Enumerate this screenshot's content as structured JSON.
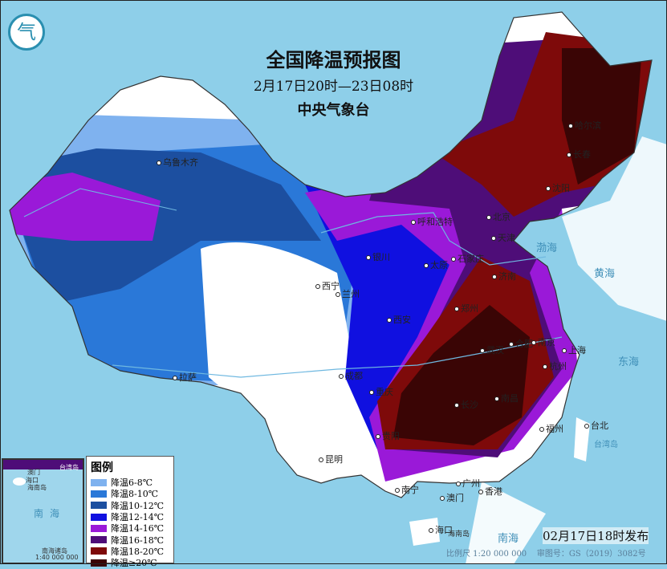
{
  "header": {
    "title": "全国降温预报图",
    "period": "2月17日20时—23日08时",
    "issuer": "中央气象台"
  },
  "logo": {
    "text": "气"
  },
  "legend": {
    "title": "图例",
    "items": [
      {
        "label": "降温6-8℃",
        "color": "#7fb2ef"
      },
      {
        "label": "降温8-10℃",
        "color": "#2a78d8"
      },
      {
        "label": "降温10-12℃",
        "color": "#1c4fa0"
      },
      {
        "label": "降温12-14℃",
        "color": "#1010e0"
      },
      {
        "label": "降温14-16℃",
        "color": "#9a19d8"
      },
      {
        "label": "降温16-18℃",
        "color": "#4e0d78"
      },
      {
        "label": "降温18-20℃",
        "color": "#7e0a0a"
      },
      {
        "label": "降温≥20℃",
        "color": "#3a0505"
      }
    ]
  },
  "cities": [
    "乌鲁木齐",
    "拉萨",
    "西宁",
    "兰州",
    "银川",
    "呼和浩特",
    "北京",
    "天津",
    "石家庄",
    "太原",
    "济南",
    "郑州",
    "西安",
    "成都",
    "重庆",
    "贵阳",
    "昆明",
    "南宁",
    "广州",
    "香港",
    "澳门",
    "海口",
    "长沙",
    "武汉",
    "南昌",
    "合肥",
    "南京",
    "上海",
    "杭州",
    "福州",
    "台北",
    "哈尔滨",
    "长春",
    "沈阳"
  ],
  "sea_labels": [
    "渤海",
    "黄海",
    "东海",
    "南海",
    "台湾岛",
    "海南岛"
  ],
  "inset": {
    "labels": [
      "台湾岛",
      "澳门",
      "海口",
      "海南岛",
      "南",
      "海",
      "南海诸岛"
    ],
    "scale": "1:40 000 000"
  },
  "footer": {
    "issued": "02月17日18时发布",
    "scale": "比例尺 1:20 000 000",
    "map_no": "审图号：GS（2019）3082号"
  }
}
